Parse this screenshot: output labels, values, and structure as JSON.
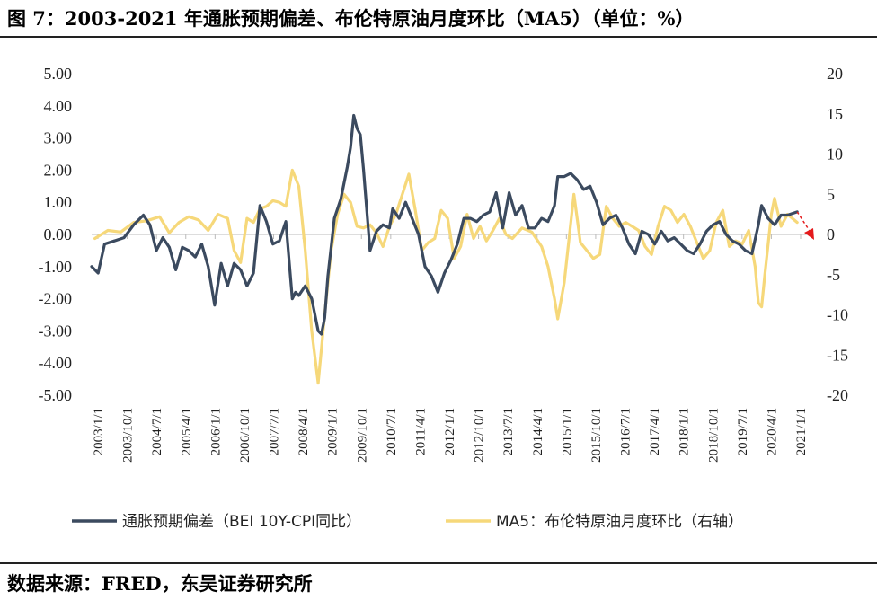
{
  "header": {
    "title": "图 7：2003-2021 年通胀预期偏差、布伦特原油月度环比（MA5）（单位：%）"
  },
  "footer": {
    "source": "数据来源：FRED，东吴证券研究所"
  },
  "chart_data": {
    "type": "line",
    "title": "2003-2021 年通胀预期偏差、布伦特原油月度环比（MA5）（单位：%）",
    "x_range": [
      "2003-01",
      "2021-06"
    ],
    "x_tick_labels": [
      "2003/1/1",
      "2003/10/1",
      "2004/7/1",
      "2005/4/1",
      "2006/1/1",
      "2006/10/1",
      "2007/7/1",
      "2008/4/1",
      "2009/1/1",
      "2009/10/1",
      "2010/7/1",
      "2011/4/1",
      "2012/1/1",
      "2012/10/1",
      "2013/7/1",
      "2014/4/1",
      "2015/1/1",
      "2015/10/1",
      "2016/7/1",
      "2017/4/1",
      "2018/1/1",
      "2018/10/1",
      "2019/7/1",
      "2020/4/1",
      "2021/1/1"
    ],
    "y_left": {
      "lim": [
        -5,
        5
      ],
      "ticks": [
        "5.00",
        "4.00",
        "3.00",
        "2.00",
        "1.00",
        "0.00",
        "-1.00",
        "-2.00",
        "-3.00",
        "-4.00",
        "-5.00"
      ]
    },
    "y_right": {
      "lim": [
        -20,
        20
      ],
      "ticks": [
        "20",
        "15",
        "10",
        "5",
        "0",
        "-5",
        "-10",
        "-15",
        "-20"
      ]
    },
    "legend_position": "bottom",
    "grid": false,
    "series": [
      {
        "name": "通胀预期偏差（BEI 10Y-CPI同比）",
        "axis": "left",
        "color": "#3b4a5f",
        "points": [
          [
            "2003-01",
            -1.0
          ],
          [
            "2003-03",
            -1.2
          ],
          [
            "2003-05",
            -0.3
          ],
          [
            "2003-08",
            -0.2
          ],
          [
            "2003-11",
            -0.1
          ],
          [
            "2004-02",
            0.3
          ],
          [
            "2004-05",
            0.6
          ],
          [
            "2004-07",
            0.3
          ],
          [
            "2004-09",
            -0.5
          ],
          [
            "2004-11",
            -0.1
          ],
          [
            "2005-01",
            -0.4
          ],
          [
            "2005-03",
            -1.1
          ],
          [
            "2005-05",
            -0.4
          ],
          [
            "2005-07",
            -0.5
          ],
          [
            "2005-09",
            -0.7
          ],
          [
            "2005-11",
            -0.3
          ],
          [
            "2006-01",
            -1.0
          ],
          [
            "2006-03",
            -2.2
          ],
          [
            "2006-05",
            -0.9
          ],
          [
            "2006-07",
            -1.6
          ],
          [
            "2006-09",
            -0.9
          ],
          [
            "2006-11",
            -1.1
          ],
          [
            "2007-01",
            -1.6
          ],
          [
            "2007-03",
            -1.2
          ],
          [
            "2007-05",
            0.9
          ],
          [
            "2007-07",
            0.4
          ],
          [
            "2007-09",
            -0.3
          ],
          [
            "2007-11",
            -0.2
          ],
          [
            "2008-01",
            0.4
          ],
          [
            "2008-03",
            -2.0
          ],
          [
            "2008-04",
            -1.8
          ],
          [
            "2008-05",
            -1.9
          ],
          [
            "2008-07",
            -1.6
          ],
          [
            "2008-09",
            -2.0
          ],
          [
            "2008-11",
            -3.0
          ],
          [
            "2008-12",
            -3.1
          ],
          [
            "2009-01",
            -2.6
          ],
          [
            "2009-02",
            -1.3
          ],
          [
            "2009-04",
            0.5
          ],
          [
            "2009-06",
            1.1
          ],
          [
            "2009-08",
            2.1
          ],
          [
            "2009-09",
            2.7
          ],
          [
            "2009-10",
            3.7
          ],
          [
            "2009-11",
            3.3
          ],
          [
            "2009-12",
            3.1
          ],
          [
            "2010-01",
            2.0
          ],
          [
            "2010-03",
            -0.5
          ],
          [
            "2010-05",
            0.1
          ],
          [
            "2010-07",
            0.3
          ],
          [
            "2010-09",
            0.2
          ],
          [
            "2010-10",
            0.8
          ],
          [
            "2010-12",
            0.5
          ],
          [
            "2011-02",
            1.0
          ],
          [
            "2011-04",
            0.5
          ],
          [
            "2011-06",
            0.0
          ],
          [
            "2011-08",
            -1.0
          ],
          [
            "2011-10",
            -1.3
          ],
          [
            "2011-12",
            -1.8
          ],
          [
            "2012-02",
            -1.2
          ],
          [
            "2012-04",
            -0.8
          ],
          [
            "2012-06",
            -0.3
          ],
          [
            "2012-08",
            0.5
          ],
          [
            "2012-10",
            0.5
          ],
          [
            "2012-12",
            0.4
          ],
          [
            "2013-02",
            0.6
          ],
          [
            "2013-04",
            0.7
          ],
          [
            "2013-06",
            1.3
          ],
          [
            "2013-08",
            0.2
          ],
          [
            "2013-10",
            1.3
          ],
          [
            "2013-12",
            0.6
          ],
          [
            "2014-02",
            0.9
          ],
          [
            "2014-04",
            0.2
          ],
          [
            "2014-06",
            0.2
          ],
          [
            "2014-08",
            0.5
          ],
          [
            "2014-10",
            0.4
          ],
          [
            "2014-12",
            0.9
          ],
          [
            "2015-01",
            1.8
          ],
          [
            "2015-03",
            1.8
          ],
          [
            "2015-05",
            1.9
          ],
          [
            "2015-07",
            1.7
          ],
          [
            "2015-09",
            1.4
          ],
          [
            "2015-11",
            1.5
          ],
          [
            "2016-01",
            1.0
          ],
          [
            "2016-03",
            0.3
          ],
          [
            "2016-05",
            0.5
          ],
          [
            "2016-07",
            0.6
          ],
          [
            "2016-09",
            0.2
          ],
          [
            "2016-11",
            -0.3
          ],
          [
            "2017-01",
            -0.6
          ],
          [
            "2017-03",
            0.1
          ],
          [
            "2017-05",
            0.0
          ],
          [
            "2017-07",
            -0.3
          ],
          [
            "2017-09",
            0.1
          ],
          [
            "2017-11",
            -0.2
          ],
          [
            "2018-01",
            -0.1
          ],
          [
            "2018-03",
            -0.3
          ],
          [
            "2018-05",
            -0.5
          ],
          [
            "2018-07",
            -0.6
          ],
          [
            "2018-09",
            -0.3
          ],
          [
            "2018-11",
            0.1
          ],
          [
            "2019-01",
            0.3
          ],
          [
            "2019-03",
            0.4
          ],
          [
            "2019-05",
            0.0
          ],
          [
            "2019-07",
            -0.2
          ],
          [
            "2019-09",
            -0.3
          ],
          [
            "2019-11",
            -0.5
          ],
          [
            "2020-01",
            -0.6
          ],
          [
            "2020-03",
            0.3
          ],
          [
            "2020-04",
            0.9
          ],
          [
            "2020-06",
            0.5
          ],
          [
            "2020-08",
            0.3
          ],
          [
            "2020-10",
            0.6
          ],
          [
            "2020-12",
            0.6
          ],
          [
            "2021-03",
            0.7
          ]
        ]
      },
      {
        "name": "MA5：布伦特原油月度环比（右轴）",
        "axis": "right",
        "color": "#f6d87a",
        "points": [
          [
            "2003-02",
            -0.5
          ],
          [
            "2003-06",
            0.5
          ],
          [
            "2003-10",
            0.3
          ],
          [
            "2004-02",
            1.5
          ],
          [
            "2004-06",
            1.7
          ],
          [
            "2004-10",
            2.2
          ],
          [
            "2005-01",
            0.2
          ],
          [
            "2005-04",
            1.5
          ],
          [
            "2005-07",
            2.2
          ],
          [
            "2005-10",
            1.8
          ],
          [
            "2006-01",
            0.5
          ],
          [
            "2006-04",
            2.5
          ],
          [
            "2006-07",
            2.0
          ],
          [
            "2006-09",
            -2.0
          ],
          [
            "2006-11",
            -3.5
          ],
          [
            "2007-01",
            2.0
          ],
          [
            "2007-03",
            1.5
          ],
          [
            "2007-05",
            3.2
          ],
          [
            "2007-07",
            3.5
          ],
          [
            "2007-09",
            4.2
          ],
          [
            "2007-11",
            4.0
          ],
          [
            "2008-01",
            3.5
          ],
          [
            "2008-03",
            8.0
          ],
          [
            "2008-05",
            6.0
          ],
          [
            "2008-07",
            -2.0
          ],
          [
            "2008-09",
            -12.0
          ],
          [
            "2008-11",
            -18.5
          ],
          [
            "2009-01",
            -10.0
          ],
          [
            "2009-03",
            -2.0
          ],
          [
            "2009-05",
            2.5
          ],
          [
            "2009-07",
            5.0
          ],
          [
            "2009-09",
            4.0
          ],
          [
            "2009-11",
            1.0
          ],
          [
            "2010-01",
            0.8
          ],
          [
            "2010-03",
            1.2
          ],
          [
            "2010-05",
            0.2
          ],
          [
            "2010-07",
            -1.5
          ],
          [
            "2010-09",
            1.0
          ],
          [
            "2010-11",
            2.5
          ],
          [
            "2011-01",
            5.0
          ],
          [
            "2011-03",
            7.5
          ],
          [
            "2011-05",
            3.0
          ],
          [
            "2011-07",
            -2.0
          ],
          [
            "2011-09",
            -1.0
          ],
          [
            "2011-11",
            -0.5
          ],
          [
            "2012-01",
            3.0
          ],
          [
            "2012-03",
            2.0
          ],
          [
            "2012-05",
            -3.0
          ],
          [
            "2012-07",
            -1.5
          ],
          [
            "2012-09",
            2.5
          ],
          [
            "2012-11",
            -0.5
          ],
          [
            "2013-01",
            1.0
          ],
          [
            "2013-03",
            -0.8
          ],
          [
            "2013-05",
            0.5
          ],
          [
            "2013-07",
            2.0
          ],
          [
            "2013-09",
            0.0
          ],
          [
            "2013-11",
            -0.5
          ],
          [
            "2014-02",
            0.8
          ],
          [
            "2014-05",
            0.3
          ],
          [
            "2014-08",
            -1.5
          ],
          [
            "2014-10",
            -4.0
          ],
          [
            "2014-12",
            -8.0
          ],
          [
            "2015-01",
            -10.5
          ],
          [
            "2015-03",
            -6.0
          ],
          [
            "2015-06",
            5.0
          ],
          [
            "2015-08",
            -1.0
          ],
          [
            "2015-10",
            -2.0
          ],
          [
            "2015-12",
            -3.0
          ],
          [
            "2016-02",
            -2.5
          ],
          [
            "2016-04",
            3.5
          ],
          [
            "2016-06",
            2.0
          ],
          [
            "2016-08",
            1.0
          ],
          [
            "2016-10",
            1.5
          ],
          [
            "2016-12",
            1.0
          ],
          [
            "2017-02",
            0.5
          ],
          [
            "2017-04",
            -1.5
          ],
          [
            "2017-06",
            -2.5
          ],
          [
            "2017-08",
            1.0
          ],
          [
            "2017-10",
            3.5
          ],
          [
            "2017-12",
            3.0
          ],
          [
            "2018-02",
            1.5
          ],
          [
            "2018-04",
            2.5
          ],
          [
            "2018-06",
            1.0
          ],
          [
            "2018-08",
            -1.0
          ],
          [
            "2018-10",
            -3.0
          ],
          [
            "2018-12",
            -2.0
          ],
          [
            "2019-02",
            1.5
          ],
          [
            "2019-04",
            3.0
          ],
          [
            "2019-06",
            -1.5
          ],
          [
            "2019-08",
            -0.8
          ],
          [
            "2019-10",
            -1.2
          ],
          [
            "2019-12",
            0.5
          ],
          [
            "2020-02",
            -4.0
          ],
          [
            "2020-03",
            -8.5
          ],
          [
            "2020-04",
            -9.0
          ],
          [
            "2020-05",
            -5.0
          ],
          [
            "2020-07",
            2.5
          ],
          [
            "2020-08",
            4.5
          ],
          [
            "2020-10",
            1.0
          ],
          [
            "2020-12",
            2.5
          ],
          [
            "2021-03",
            1.5
          ]
        ]
      }
    ],
    "annotations": [
      {
        "type": "dashed-arrow",
        "color": "#e41a1c",
        "from": [
          "2021-03",
          0.7
        ],
        "to": [
          "2021-06",
          0.0
        ],
        "axis": "left"
      }
    ]
  }
}
